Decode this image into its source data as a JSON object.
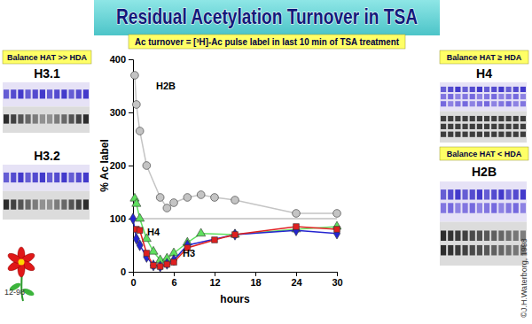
{
  "slide": {
    "title": "Residual Acetylation Turnover in TSA",
    "subtitle": "Ac turnover = [³H]-Ac pulse label in last 10 min of TSA treatment",
    "panels": [
      {
        "heading": "Balance HAT >> HDA",
        "gels": [
          "H3.1",
          "H3.2"
        ]
      },
      {
        "heading": "Balance HAT ≥ HDA",
        "gels": [
          "H4"
        ]
      },
      {
        "heading": "Balance HAT < HDA",
        "gels": [
          "H2B"
        ]
      }
    ],
    "code": "12-98",
    "copyright": "©J.H.Waterborg, 1998"
  },
  "chart_data": {
    "type": "line",
    "x_label": "hours",
    "y_label": "% Ac label",
    "xlim": [
      0,
      30
    ],
    "xticks": [
      0,
      6,
      12,
      18,
      24,
      30
    ],
    "ylim": [
      0,
      400
    ],
    "yticks": [
      0,
      100,
      200,
      300,
      400
    ],
    "reference_y": 100,
    "grid": false,
    "series": [
      {
        "name": "H2B",
        "color": "#c4c4c4",
        "marker": "circle",
        "x": [
          0.25,
          0.5,
          1,
          2,
          4,
          5,
          6,
          8,
          10,
          12,
          15,
          24,
          30
        ],
        "values": [
          370,
          315,
          265,
          200,
          140,
          120,
          130,
          140,
          145,
          140,
          135,
          110,
          110
        ]
      },
      {
        "name": "H4",
        "color": "#5ee05e",
        "marker": "triangle",
        "x": [
          0.25,
          0.5,
          1,
          2,
          3,
          4,
          5,
          6,
          8,
          10,
          15,
          24,
          30
        ],
        "values": [
          138,
          128,
          100,
          62,
          38,
          22,
          25,
          35,
          55,
          72,
          70,
          80,
          85
        ]
      },
      {
        "name": "H3",
        "color": "#2424d0",
        "marker": "diamond",
        "x": [
          0,
          0.5,
          1,
          2,
          3,
          4,
          5,
          6,
          8,
          15,
          24,
          30
        ],
        "values": [
          100,
          62,
          50,
          28,
          12,
          10,
          15,
          22,
          50,
          70,
          78,
          72
        ]
      },
      {
        "color": "#e02020",
        "marker": "square",
        "x": [
          0.5,
          1,
          2,
          3,
          4,
          5,
          6,
          8,
          12,
          15,
          24,
          30
        ],
        "values": [
          80,
          78,
          35,
          12,
          10,
          14,
          18,
          45,
          60,
          70,
          85,
          80
        ]
      }
    ]
  }
}
